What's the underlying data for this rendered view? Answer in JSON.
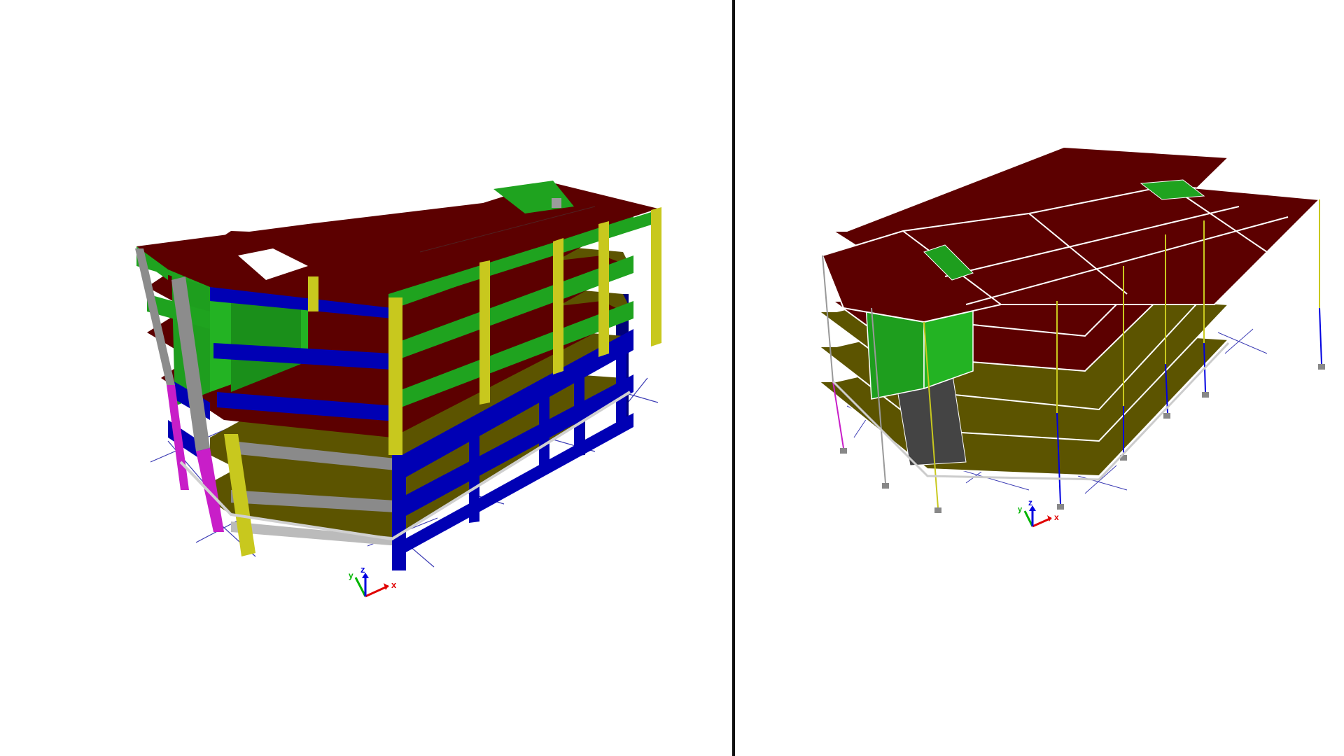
{
  "viewports": [
    {
      "name": "model-view-solid",
      "render_mode": "extruded"
    },
    {
      "name": "model-view-wireframe",
      "render_mode": "analytical"
    }
  ],
  "axis_triad": {
    "x": "x",
    "y": "y",
    "z": "z"
  },
  "colors": {
    "slab_roof": "#5c0000",
    "slab_floor": "#5c5400",
    "beam_green": "#1fa31f",
    "beam_blue": "#0000b4",
    "column_yellow": "#c8c81e",
    "column_magenta": "#c81ec8",
    "wall_gray": "#8c8c8c",
    "wall_green": "#1e9e1e",
    "grid_line": "#3c3cb4",
    "axis_x": "#e00000",
    "axis_y": "#00b400",
    "axis_z": "#0000e0",
    "splitter": "#111111"
  }
}
